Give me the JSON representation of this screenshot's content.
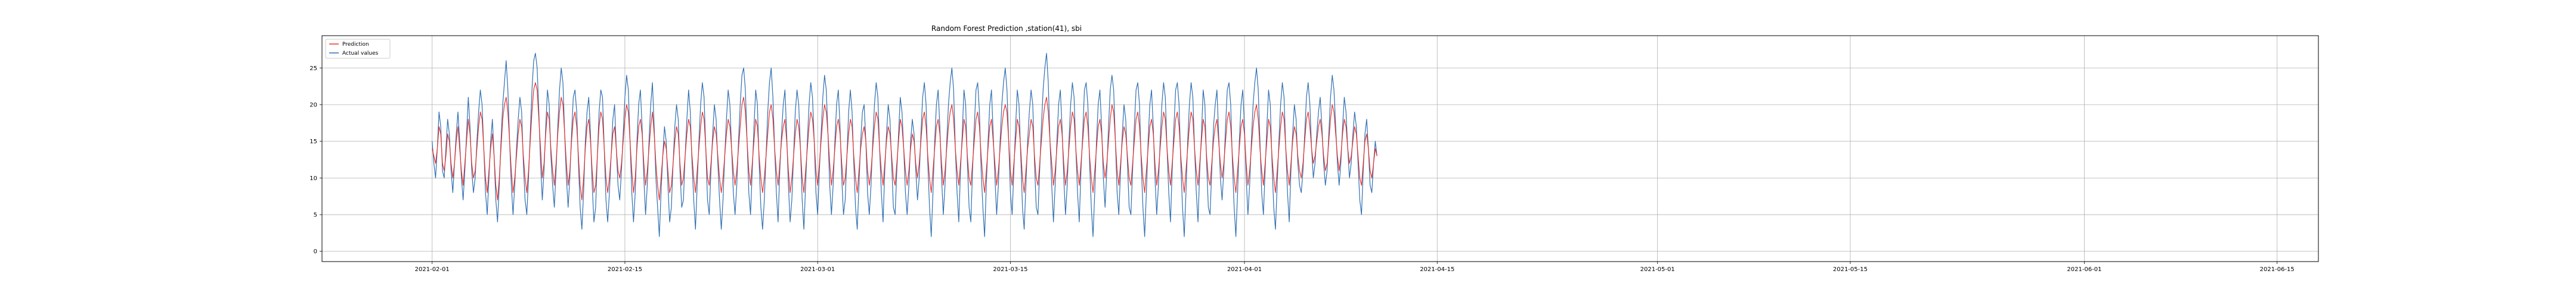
{
  "chart_data": {
    "type": "line",
    "title": "Random Forest Prediction ,station(41), sbi",
    "xlabel": "",
    "ylabel": "",
    "x_range": [
      "2021-01-24",
      "2021-06-18"
    ],
    "ylim": [
      -1.4,
      29.4
    ],
    "grid": true,
    "legend_position": "top-left",
    "x_ticks": [
      "2021-02-01",
      "2021-02-15",
      "2021-03-01",
      "2021-03-15",
      "2021-04-01",
      "2021-04-15",
      "2021-05-01",
      "2021-05-15",
      "2021-06-01",
      "2021-06-15"
    ],
    "y_ticks": [
      0,
      5,
      10,
      15,
      20,
      25
    ],
    "series_start": "2021-02-01T00:00",
    "series_step_hours": 3,
    "series": [
      {
        "name": "Prediction",
        "color": "#e8322d",
        "values": [
          14,
          13,
          12,
          14,
          17,
          16,
          12,
          11,
          13,
          16,
          15,
          12,
          10,
          12,
          15,
          17,
          14,
          11,
          9,
          12,
          15,
          18,
          16,
          12,
          10,
          11,
          14,
          17,
          19,
          18,
          14,
          10,
          8,
          11,
          14,
          16,
          13,
          9,
          7,
          10,
          14,
          18,
          20,
          21,
          19,
          15,
          11,
          8,
          10,
          13,
          16,
          18,
          17,
          13,
          10,
          8,
          11,
          15,
          19,
          22,
          23,
          22,
          18,
          14,
          10,
          12,
          16,
          19,
          18,
          14,
          11,
          9,
          12,
          16,
          19,
          21,
          20,
          16,
          12,
          9,
          11,
          15,
          18,
          19,
          17,
          13,
          9,
          7,
          10,
          14,
          17,
          18,
          15,
          11,
          8,
          9,
          13,
          17,
          19,
          18,
          14,
          10,
          8,
          10,
          13,
          16,
          17,
          14,
          11,
          10,
          12,
          15,
          18,
          20,
          19,
          15,
          11,
          8,
          10,
          14,
          17,
          18,
          16,
          12,
          9,
          11,
          14,
          17,
          19,
          16,
          12,
          9,
          7,
          10,
          13,
          15,
          14,
          11,
          8,
          9,
          12,
          15,
          17,
          16,
          12,
          9,
          10,
          13,
          16,
          18,
          17,
          13,
          10,
          8,
          11,
          14,
          17,
          19,
          18,
          14,
          10,
          9,
          12,
          15,
          17,
          16,
          13,
          10,
          8,
          10,
          13,
          16,
          18,
          17,
          14,
          11,
          9,
          11,
          14,
          17,
          20,
          21,
          19,
          15,
          11,
          9,
          12,
          15,
          18,
          17,
          13,
          10,
          8,
          10,
          13,
          16,
          19,
          20,
          18,
          14,
          11,
          9,
          12,
          15,
          17,
          18,
          15,
          11,
          8,
          10,
          13,
          16,
          18,
          17,
          14,
          10,
          8,
          11,
          14,
          17,
          19,
          18,
          15,
          11,
          9,
          12,
          15,
          18,
          20,
          19,
          16,
          12,
          9,
          11,
          14,
          17,
          18,
          16,
          12,
          9,
          10,
          13,
          16,
          18,
          17,
          13,
          10,
          8,
          11,
          14,
          16,
          17,
          15,
          11,
          9,
          11,
          14,
          17,
          19,
          18,
          14,
          11,
          9,
          12,
          15,
          17,
          16,
          13,
          10,
          9,
          12,
          15,
          18,
          17,
          14,
          11,
          9,
          11,
          14,
          16,
          15,
          12,
          10,
          12,
          15,
          18,
          19,
          17,
          13,
          10,
          8,
          11,
          14,
          17,
          18,
          16,
          12,
          9,
          11,
          14,
          17,
          19,
          20,
          18,
          14,
          11,
          9,
          12,
          15,
          18,
          17,
          13,
          10,
          9,
          12,
          15,
          18,
          19,
          17,
          13,
          10,
          8,
          11,
          14,
          17,
          18,
          15,
          12,
          9,
          11,
          14,
          17,
          19,
          20,
          19,
          15,
          11,
          9,
          12,
          15,
          18,
          17,
          14,
          10,
          8,
          11,
          14,
          16,
          18,
          17,
          13,
          10,
          9,
          12,
          15,
          18,
          20,
          21,
          19,
          15,
          12,
          9,
          11,
          14,
          17,
          18,
          16,
          12,
          9,
          11,
          14,
          17,
          19,
          18,
          14,
          11,
          9,
          12,
          15,
          18,
          19,
          17,
          13,
          10,
          8,
          11,
          14,
          17,
          18,
          16,
          12,
          10,
          12,
          15,
          18,
          20,
          19,
          15,
          11,
          9,
          12,
          15,
          17,
          16,
          13,
          10,
          9,
          12,
          15,
          18,
          19,
          17,
          13,
          10,
          8,
          11,
          14,
          17,
          18,
          16,
          12,
          9,
          11,
          14,
          17,
          19,
          18,
          14,
          11,
          9,
          12,
          15,
          18,
          19,
          17,
          13,
          10,
          8,
          11,
          14,
          17,
          19,
          18,
          14,
          11,
          9,
          12,
          15,
          18,
          17,
          13,
          10,
          9,
          12,
          15,
          17,
          18,
          15,
          12,
          10,
          12,
          15,
          18,
          19,
          17,
          13,
          10,
          8,
          11,
          14,
          17,
          18,
          16,
          12,
          9,
          11,
          14,
          17,
          19,
          20,
          18,
          14,
          11,
          9,
          12,
          15,
          18,
          17,
          13,
          10,
          8,
          11,
          14,
          17,
          19,
          18,
          14,
          11,
          9,
          12,
          15,
          17,
          16,
          13,
          11,
          10,
          12,
          15,
          18,
          19,
          17,
          14,
          12,
          13,
          15,
          17,
          18,
          16,
          13,
          11,
          12,
          15,
          18,
          20,
          19,
          16,
          13,
          11,
          13,
          16,
          18,
          17,
          14,
          12,
          13,
          15,
          17,
          16,
          13,
          10,
          9,
          12,
          15,
          16,
          14,
          11,
          10,
          12,
          14,
          13
        ],
        "note_values": "same length as Actual values"
      },
      {
        "name": "Actual values",
        "color": "#2f6fb2",
        "values": [
          15,
          12,
          10,
          14,
          19,
          17,
          11,
          10,
          14,
          18,
          16,
          11,
          8,
          12,
          16,
          19,
          15,
          10,
          7,
          11,
          16,
          21,
          17,
          11,
          8,
          10,
          15,
          19,
          22,
          20,
          14,
          8,
          5,
          10,
          15,
          18,
          13,
          7,
          4,
          9,
          15,
          20,
          23,
          26,
          22,
          15,
          9,
          5,
          9,
          14,
          18,
          21,
          19,
          12,
          7,
          5,
          10,
          16,
          22,
          26,
          27,
          25,
          19,
          12,
          7,
          11,
          17,
          22,
          20,
          13,
          9,
          6,
          11,
          17,
          22,
          25,
          23,
          16,
          10,
          6,
          10,
          16,
          21,
          22,
          19,
          12,
          6,
          3,
          8,
          15,
          19,
          21,
          16,
          9,
          4,
          6,
          13,
          19,
          22,
          21,
          14,
          7,
          4,
          8,
          13,
          18,
          20,
          14,
          9,
          7,
          11,
          16,
          21,
          24,
          22,
          15,
          8,
          4,
          8,
          15,
          20,
          22,
          17,
          10,
          5,
          9,
          15,
          20,
          23,
          17,
          10,
          6,
          2,
          8,
          13,
          17,
          15,
          9,
          4,
          6,
          12,
          17,
          20,
          18,
          11,
          6,
          7,
          13,
          18,
          22,
          19,
          12,
          7,
          3,
          9,
          15,
          20,
          23,
          21,
          14,
          7,
          5,
          11,
          16,
          20,
          18,
          12,
          7,
          3,
          7,
          13,
          18,
          22,
          20,
          14,
          8,
          5,
          9,
          15,
          20,
          24,
          25,
          22,
          15,
          8,
          5,
          11,
          17,
          22,
          20,
          12,
          6,
          3,
          7,
          13,
          19,
          23,
          25,
          21,
          14,
          8,
          4,
          11,
          16,
          20,
          22,
          16,
          9,
          4,
          7,
          13,
          19,
          22,
          20,
          14,
          7,
          3,
          9,
          15,
          20,
          23,
          21,
          15,
          8,
          5,
          11,
          16,
          21,
          24,
          22,
          16,
          9,
          5,
          9,
          15,
          20,
          22,
          17,
          10,
          5,
          7,
          13,
          19,
          22,
          19,
          12,
          6,
          3,
          9,
          15,
          19,
          20,
          15,
          8,
          5,
          9,
          15,
          20,
          23,
          21,
          14,
          8,
          4,
          11,
          16,
          20,
          18,
          12,
          6,
          5,
          11,
          16,
          21,
          19,
          14,
          8,
          5,
          9,
          15,
          18,
          16,
          11,
          7,
          10,
          16,
          21,
          23,
          20,
          12,
          6,
          2,
          8,
          15,
          20,
          22,
          17,
          10,
          5,
          9,
          15,
          20,
          23,
          25,
          22,
          14,
          8,
          4,
          11,
          16,
          22,
          20,
          12,
          6,
          4,
          11,
          17,
          22,
          23,
          19,
          11,
          6,
          2,
          9,
          15,
          20,
          22,
          16,
          10,
          5,
          9,
          15,
          20,
          23,
          25,
          22,
          15,
          8,
          5,
          11,
          17,
          22,
          20,
          13,
          6,
          3,
          9,
          15,
          19,
          22,
          20,
          12,
          6,
          5,
          11,
          17,
          22,
          25,
          27,
          23,
          15,
          9,
          4,
          9,
          15,
          20,
          22,
          17,
          10,
          5,
          9,
          15,
          20,
          23,
          21,
          14,
          8,
          4,
          11,
          16,
          22,
          23,
          20,
          12,
          6,
          2,
          8,
          15,
          20,
          22,
          17,
          10,
          6,
          11,
          17,
          22,
          24,
          22,
          15,
          8,
          5,
          11,
          16,
          20,
          18,
          12,
          6,
          5,
          11,
          17,
          22,
          23,
          20,
          12,
          6,
          2,
          8,
          15,
          20,
          22,
          17,
          10,
          5,
          9,
          15,
          20,
          23,
          21,
          14,
          8,
          4,
          11,
          17,
          22,
          23,
          20,
          12,
          6,
          2,
          8,
          15,
          20,
          23,
          21,
          14,
          8,
          4,
          11,
          16,
          22,
          20,
          12,
          6,
          5,
          11,
          17,
          20,
          22,
          16,
          10,
          7,
          11,
          17,
          22,
          23,
          20,
          12,
          6,
          2,
          8,
          15,
          20,
          22,
          17,
          10,
          5,
          9,
          15,
          20,
          23,
          25,
          22,
          15,
          8,
          5,
          11,
          17,
          22,
          20,
          12,
          6,
          3,
          9,
          15,
          20,
          23,
          21,
          14,
          8,
          4,
          11,
          16,
          20,
          18,
          12,
          9,
          8,
          11,
          16,
          21,
          23,
          20,
          14,
          10,
          12,
          16,
          19,
          21,
          17,
          12,
          9,
          11,
          16,
          21,
          24,
          22,
          17,
          12,
          9,
          12,
          17,
          21,
          19,
          14,
          10,
          12,
          16,
          19,
          17,
          12,
          7,
          5,
          11,
          16,
          18,
          14,
          9,
          8,
          12,
          15,
          13
        ]
      }
    ]
  }
}
